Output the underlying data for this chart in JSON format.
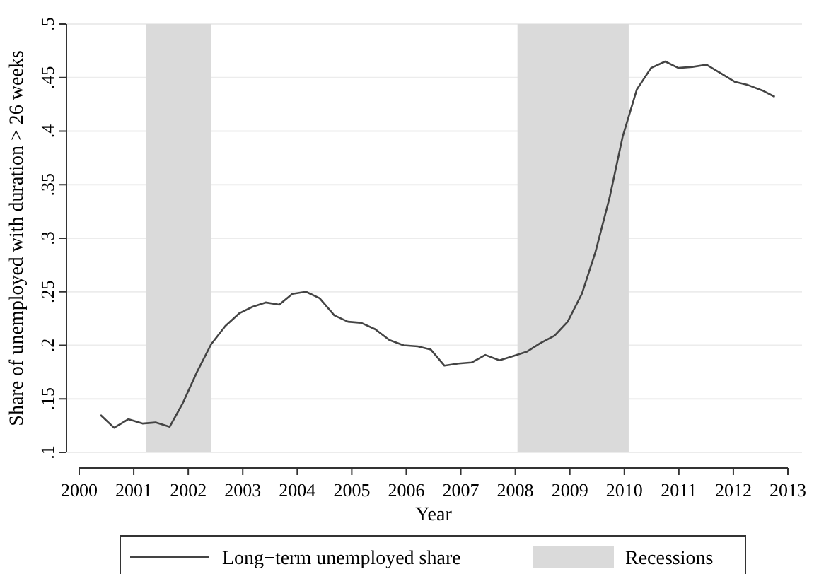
{
  "chart_data": {
    "type": "line",
    "xlabel": "Year",
    "ylabel": "Share of unemployed with duration > 26 weeks",
    "x": [
      2000.39,
      2000.64,
      2000.9,
      2001.16,
      2001.4,
      2001.66,
      2001.9,
      2002.16,
      2002.42,
      2002.68,
      2002.94,
      2003.18,
      2003.42,
      2003.67,
      2003.91,
      2004.16,
      2004.41,
      2004.68,
      2004.93,
      2005.17,
      2005.43,
      2005.69,
      2005.95,
      2006.21,
      2006.45,
      2006.7,
      2006.96,
      2007.2,
      2007.45,
      2007.71,
      2007.96,
      2008.21,
      2008.46,
      2008.72,
      2008.96,
      2009.22,
      2009.47,
      2009.73,
      2009.97,
      2010.23,
      2010.49,
      2010.75,
      2010.99,
      2011.25,
      2011.51,
      2011.77,
      2012.03,
      2012.27,
      2012.53,
      2012.76
    ],
    "series": [
      {
        "name": "Long−term unemployed share",
        "color": "#444444",
        "values": [
          0.135,
          0.123,
          0.131,
          0.127,
          0.128,
          0.124,
          0.146,
          0.175,
          0.201,
          0.218,
          0.23,
          0.236,
          0.24,
          0.238,
          0.248,
          0.25,
          0.244,
          0.228,
          0.222,
          0.221,
          0.215,
          0.205,
          0.2,
          0.199,
          0.196,
          0.181,
          0.183,
          0.184,
          0.191,
          0.186,
          0.19,
          0.194,
          0.202,
          0.209,
          0.222,
          0.248,
          0.287,
          0.338,
          0.395,
          0.439,
          0.459,
          0.465,
          0.459,
          0.46,
          0.462,
          0.454,
          0.446,
          0.443,
          0.438,
          0.432
        ]
      }
    ],
    "bands": [
      {
        "axis": "x",
        "from": 2001.22,
        "to": 2002.42,
        "label": "Recessions",
        "color": "#dadada"
      },
      {
        "axis": "x",
        "from": 2008.04,
        "to": 2010.08,
        "color": "#dadada"
      }
    ],
    "xlim": [
      2000,
      2013
    ],
    "xticks": [
      2000,
      2001,
      2002,
      2003,
      2004,
      2005,
      2006,
      2007,
      2008,
      2009,
      2010,
      2011,
      2012,
      2013
    ],
    "ylim": [
      0.1,
      0.5
    ],
    "yticks": [
      {
        "value": 0.1,
        "label": ".1"
      },
      {
        "value": 0.15,
        "label": ".15"
      },
      {
        "value": 0.2,
        "label": ".2"
      },
      {
        "value": 0.25,
        "label": ".25"
      },
      {
        "value": 0.3,
        "label": ".3"
      },
      {
        "value": 0.35,
        "label": ".35"
      },
      {
        "value": 0.4,
        "label": ".4"
      },
      {
        "value": 0.45,
        "label": ".45"
      },
      {
        "value": 0.5,
        "label": ".5"
      }
    ],
    "grid": "y",
    "legend": "bottom",
    "marker": "none",
    "line_style": "solid"
  }
}
